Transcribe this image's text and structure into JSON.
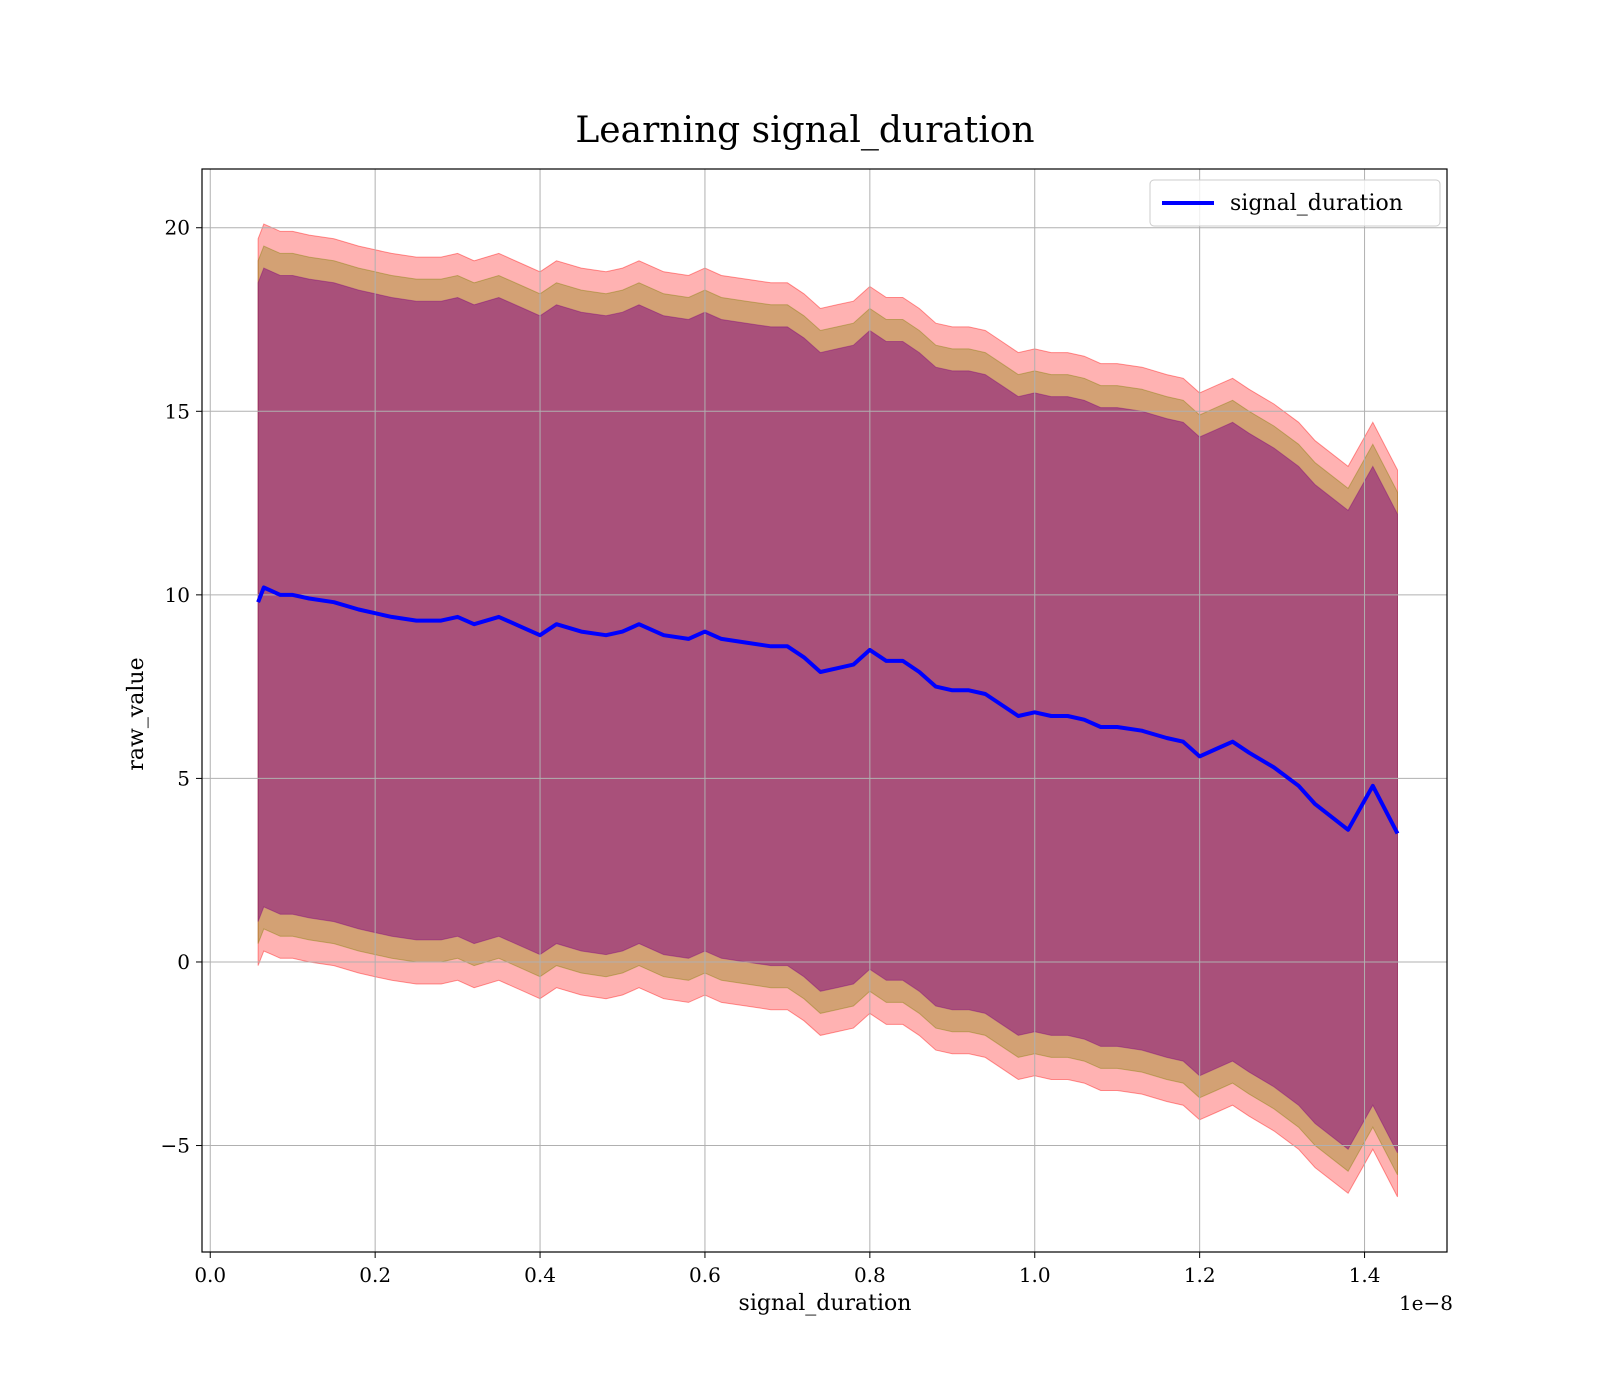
{
  "chart_data": {
    "type": "line",
    "title": "Learning signal_duration",
    "xlabel": "signal_duration",
    "ylabel": "raw_value",
    "x_offset_label": "1e−8",
    "xlim": [
      -1e-10,
      1.5e-08
    ],
    "ylim": [
      -7.9,
      21.6
    ],
    "x_ticks": [
      0.0,
      2e-09,
      4e-09,
      6e-09,
      8e-09,
      1e-08,
      1.2e-08,
      1.4e-08
    ],
    "x_tick_labels": [
      "0.0",
      "0.2",
      "0.4",
      "0.6",
      "0.8",
      "1.0",
      "1.2",
      "1.4"
    ],
    "y_ticks": [
      -5,
      0,
      5,
      10,
      15,
      20
    ],
    "y_tick_labels": [
      "−5",
      "0",
      "5",
      "10",
      "15",
      "20"
    ],
    "grid": true,
    "legend_position": "top-right",
    "colors": {
      "line": "#0000ff",
      "band_outer": "#ff0000",
      "band_middle": "#808000",
      "band_inner": "#800080"
    },
    "band_offsets": [
      9.9,
      9.3,
      8.7
    ],
    "series": [
      {
        "name": "signal_duration",
        "x": [
          5.8e-10,
          6.5e-10,
          7.5e-10,
          8.5e-10,
          1e-09,
          1.2e-09,
          1.5e-09,
          1.8e-09,
          2e-09,
          2.2e-09,
          2.5e-09,
          2.8e-09,
          3e-09,
          3.2e-09,
          3.5e-09,
          3.8e-09,
          4e-09,
          4.2e-09,
          4.5e-09,
          4.8e-09,
          5e-09,
          5.2e-09,
          5.5e-09,
          5.8e-09,
          6e-09,
          6.2e-09,
          6.5e-09,
          6.8e-09,
          7e-09,
          7.2e-09,
          7.4e-09,
          7.6e-09,
          7.8e-09,
          8e-09,
          8.2e-09,
          8.4e-09,
          8.6e-09,
          8.8e-09,
          9e-09,
          9.2e-09,
          9.4e-09,
          9.6e-09,
          9.8e-09,
          1e-08,
          1.02e-08,
          1.04e-08,
          1.06e-08,
          1.08e-08,
          1.1e-08,
          1.13e-08,
          1.16e-08,
          1.18e-08,
          1.2e-08,
          1.22e-08,
          1.24e-08,
          1.26e-08,
          1.29e-08,
          1.32e-08,
          1.34e-08,
          1.38e-08,
          1.41e-08,
          1.44e-08
        ],
        "values": [
          9.8,
          10.2,
          10.1,
          10.0,
          10.0,
          9.9,
          9.8,
          9.6,
          9.5,
          9.4,
          9.3,
          9.3,
          9.4,
          9.2,
          9.4,
          9.1,
          8.9,
          9.2,
          9.0,
          8.9,
          9.0,
          9.2,
          8.9,
          8.8,
          9.0,
          8.8,
          8.7,
          8.6,
          8.6,
          8.3,
          7.9,
          8.0,
          8.1,
          8.5,
          8.2,
          8.2,
          7.9,
          7.5,
          7.4,
          7.4,
          7.3,
          7.0,
          6.7,
          6.8,
          6.7,
          6.7,
          6.6,
          6.4,
          6.4,
          6.3,
          6.1,
          6.0,
          5.6,
          5.8,
          6.0,
          5.7,
          5.3,
          4.8,
          4.3,
          3.6,
          4.8,
          3.5
        ]
      }
    ]
  }
}
